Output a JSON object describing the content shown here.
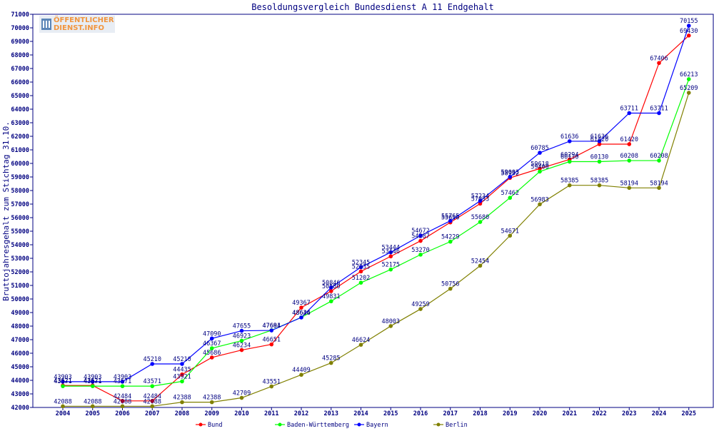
{
  "logo": {
    "line1": "ÖFFENTLICHER",
    "line2": "DIENST.INFO"
  },
  "chart_data": {
    "type": "line",
    "title": "Besoldungsvergleich Bundesdienst A 11 Endgehalt",
    "ylabel": "Bruttojahresgehalt zum Stichtag 31.10.",
    "xlabel": "",
    "x": [
      "2004",
      "2005",
      "2006",
      "2007",
      "2008",
      "2009",
      "2010",
      "2011",
      "2012",
      "2013",
      "2014",
      "2015",
      "2016",
      "2017",
      "2018",
      "2019",
      "2020",
      "2021",
      "2022",
      "2023",
      "2024",
      "2025"
    ],
    "ylim": [
      42000,
      71000
    ],
    "yticks": [
      42000,
      43000,
      44000,
      45000,
      46000,
      47000,
      48000,
      49000,
      50000,
      51000,
      52000,
      53000,
      54000,
      55000,
      56000,
      57000,
      58000,
      59000,
      60000,
      61000,
      62000,
      63000,
      64000,
      65000,
      66000,
      67000,
      68000,
      69000,
      70000,
      71000
    ],
    "grid": false,
    "legend": "bottom",
    "series": [
      {
        "name": "Bund",
        "color": "#ff0000",
        "values": [
          43621,
          43621,
          42484,
          42484,
          44435,
          45686,
          46234,
          46651,
          49367,
          50580,
          52035,
          53146,
          54287,
          55650,
          57033,
          58932,
          59618,
          60294,
          61420,
          61420,
          67406,
          69430
        ]
      },
      {
        "name": "Baden-Württemberg",
        "color": "#00ff00",
        "values": [
          43571,
          43571,
          43571,
          43571,
          43921,
          46367,
          46923,
          47694,
          48644,
          49831,
          51202,
          52175,
          53270,
          54229,
          55680,
          57462,
          59400,
          60130,
          60130,
          60208,
          60208,
          66213
        ]
      },
      {
        "name": "Bayern",
        "color": "#0000ff",
        "values": [
          43903,
          43903,
          43903,
          45210,
          45210,
          47090,
          47655,
          47681,
          48636,
          50846,
          52345,
          53444,
          54672,
          55765,
          57234,
          59003,
          60785,
          61636,
          61636,
          63711,
          63711,
          70155
        ]
      },
      {
        "name": "Berlin",
        "color": "#808000",
        "values": [
          42088,
          42088,
          42088,
          42088,
          42388,
          42388,
          42709,
          43551,
          44409,
          45285,
          46624,
          48003,
          49259,
          50756,
          52454,
          54671,
          56983,
          58385,
          58385,
          58194,
          58194,
          65209
        ]
      }
    ]
  }
}
